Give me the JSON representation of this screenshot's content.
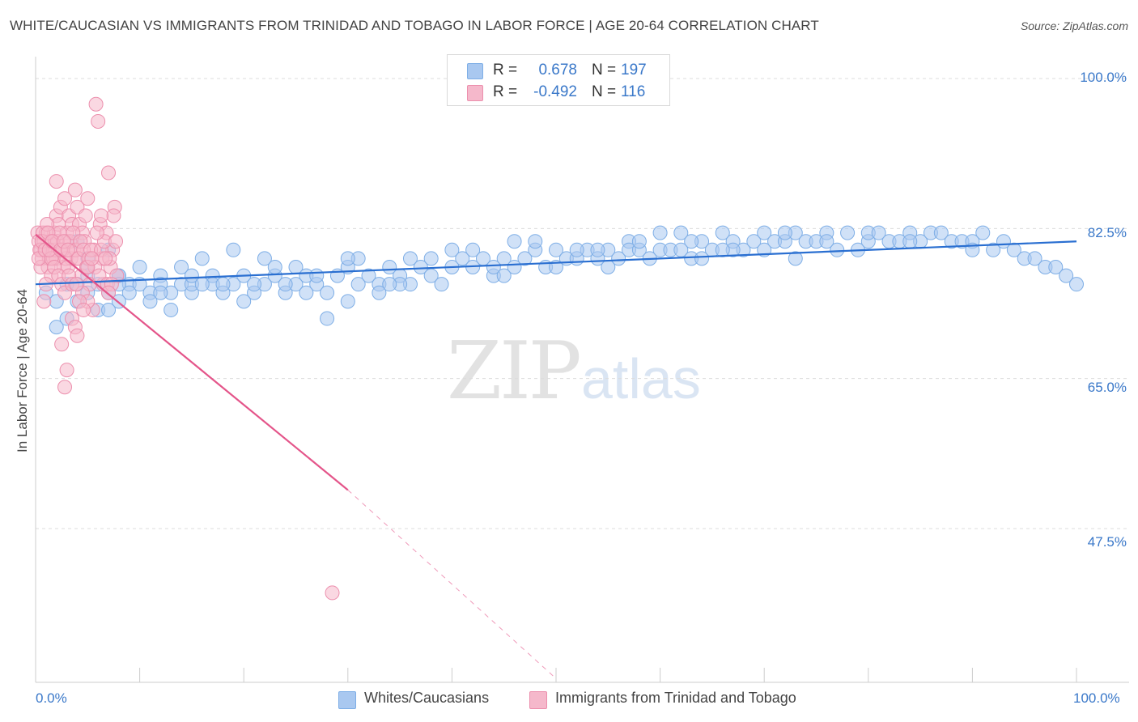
{
  "title": "WHITE/CAUCASIAN VS IMMIGRANTS FROM TRINIDAD AND TOBAGO IN LABOR FORCE | AGE 20-64 CORRELATION CHART",
  "source": "Source: ZipAtlas.com",
  "watermark": {
    "zip": "ZIP",
    "atlas": "atlas"
  },
  "stats": [
    {
      "r_label": "R =",
      "r_value": "0.678",
      "n_label": "N =",
      "n_value": "197",
      "color": "#a9c8f0"
    },
    {
      "r_label": "R =",
      "r_value": "-0.492",
      "n_label": "N =",
      "n_value": "116",
      "color": "#f5b8cb"
    }
  ],
  "legend": [
    {
      "label": "Whites/Caucasians",
      "color": "#a9c8f0"
    },
    {
      "label": "Immigrants from Trinidad and Tobago",
      "color": "#f5b8cb"
    }
  ],
  "chart_data": {
    "type": "scatter",
    "title": "WHITE/CAUCASIAN VS IMMIGRANTS FROM TRINIDAD AND TOBAGO IN LABOR FORCE | AGE 20-64 CORRELATION CHART",
    "xlabel": "",
    "ylabel": "In Labor Force | Age 20-64",
    "xlim": [
      0,
      100
    ],
    "ylim": [
      30,
      100
    ],
    "x_tick_labels": [
      "0.0%",
      "100.0%"
    ],
    "y_ticks": [
      47.5,
      65.0,
      82.5,
      100.0
    ],
    "y_tick_labels": [
      "47.5%",
      "65.0%",
      "82.5%",
      "100.0%"
    ],
    "grid": true,
    "series": [
      {
        "name": "Whites/Caucasians",
        "color": "#a9c8f0",
        "stroke": "#7eaee6",
        "trend": {
          "x": [
            0,
            100
          ],
          "y": [
            76.0,
            81.0
          ],
          "color": "#2a6fd1"
        },
        "points": [
          [
            2,
            74
          ],
          [
            2,
            71
          ],
          [
            4,
            81
          ],
          [
            5,
            78
          ],
          [
            5,
            77
          ],
          [
            5,
            79
          ],
          [
            4,
            76
          ],
          [
            6,
            76
          ],
          [
            7,
            75
          ],
          [
            7,
            80
          ],
          [
            8,
            77
          ],
          [
            8,
            74
          ],
          [
            9,
            76
          ],
          [
            10,
            76
          ],
          [
            11,
            75
          ],
          [
            12,
            77
          ],
          [
            12,
            76
          ],
          [
            13,
            73
          ],
          [
            14,
            78
          ],
          [
            14,
            76
          ],
          [
            15,
            75
          ],
          [
            15,
            76
          ],
          [
            16,
            79
          ],
          [
            17,
            77
          ],
          [
            17,
            76
          ],
          [
            18,
            75
          ],
          [
            19,
            76
          ],
          [
            20,
            77
          ],
          [
            21,
            75
          ],
          [
            22,
            76
          ],
          [
            22,
            79
          ],
          [
            23,
            77
          ],
          [
            24,
            75
          ],
          [
            25,
            78
          ],
          [
            25,
            76
          ],
          [
            26,
            77
          ],
          [
            27,
            76
          ],
          [
            28,
            75
          ],
          [
            28,
            72
          ],
          [
            29,
            77
          ],
          [
            30,
            78
          ],
          [
            31,
            76
          ],
          [
            31,
            79
          ],
          [
            32,
            77
          ],
          [
            33,
            76
          ],
          [
            33,
            75
          ],
          [
            34,
            78
          ],
          [
            35,
            77
          ],
          [
            36,
            79
          ],
          [
            36,
            76
          ],
          [
            37,
            78
          ],
          [
            38,
            77
          ],
          [
            39,
            76
          ],
          [
            40,
            78
          ],
          [
            41,
            79
          ],
          [
            42,
            80
          ],
          [
            42,
            78
          ],
          [
            43,
            79
          ],
          [
            44,
            77
          ],
          [
            45,
            79
          ],
          [
            46,
            81
          ],
          [
            46,
            78
          ],
          [
            47,
            79
          ],
          [
            48,
            80
          ],
          [
            49,
            78
          ],
          [
            50,
            80
          ],
          [
            50,
            78
          ],
          [
            51,
            79
          ],
          [
            52,
            79
          ],
          [
            53,
            80
          ],
          [
            54,
            79
          ],
          [
            55,
            78
          ],
          [
            56,
            79
          ],
          [
            57,
            81
          ],
          [
            57,
            80
          ],
          [
            58,
            80
          ],
          [
            59,
            79
          ],
          [
            60,
            80
          ],
          [
            60,
            82
          ],
          [
            61,
            80
          ],
          [
            62,
            80
          ],
          [
            63,
            79
          ],
          [
            64,
            81
          ],
          [
            64,
            79
          ],
          [
            65,
            80
          ],
          [
            66,
            82
          ],
          [
            67,
            81
          ],
          [
            68,
            80
          ],
          [
            69,
            81
          ],
          [
            70,
            82
          ],
          [
            70,
            80
          ],
          [
            71,
            81
          ],
          [
            72,
            81
          ],
          [
            73,
            82
          ],
          [
            73,
            79
          ],
          [
            74,
            81
          ],
          [
            75,
            81
          ],
          [
            76,
            82
          ],
          [
            77,
            80
          ],
          [
            78,
            82
          ],
          [
            79,
            80
          ],
          [
            80,
            81
          ],
          [
            80,
            82
          ],
          [
            81,
            82
          ],
          [
            82,
            81
          ],
          [
            83,
            81
          ],
          [
            84,
            82
          ],
          [
            85,
            81
          ],
          [
            86,
            82
          ],
          [
            87,
            82
          ],
          [
            88,
            81
          ],
          [
            89,
            81
          ],
          [
            90,
            81
          ],
          [
            91,
            82
          ],
          [
            92,
            80
          ],
          [
            93,
            81
          ],
          [
            94,
            80
          ],
          [
            95,
            79
          ],
          [
            96,
            79
          ],
          [
            97,
            78
          ],
          [
            98,
            78
          ],
          [
            99,
            77
          ],
          [
            100,
            76
          ],
          [
            62,
            82
          ],
          [
            55,
            80
          ],
          [
            48,
            81
          ],
          [
            40,
            80
          ],
          [
            35,
            76
          ],
          [
            30,
            74
          ],
          [
            27,
            77
          ],
          [
            24,
            76
          ],
          [
            20,
            74
          ],
          [
            19,
            80
          ],
          [
            18,
            76
          ],
          [
            11,
            74
          ],
          [
            13,
            75
          ],
          [
            10,
            78
          ],
          [
            9,
            75
          ],
          [
            8,
            77
          ],
          [
            6,
            73
          ],
          [
            3,
            76
          ],
          [
            30,
            79
          ],
          [
            45,
            77
          ],
          [
            52,
            80
          ],
          [
            67,
            80
          ],
          [
            72,
            82
          ],
          [
            58,
            81
          ],
          [
            76,
            81
          ],
          [
            84,
            81
          ],
          [
            90,
            80
          ],
          [
            66,
            80
          ],
          [
            63,
            81
          ],
          [
            54,
            80
          ],
          [
            44,
            78
          ],
          [
            38,
            79
          ],
          [
            34,
            76
          ],
          [
            26,
            75
          ],
          [
            23,
            78
          ],
          [
            21,
            76
          ],
          [
            15,
            77
          ],
          [
            16,
            76
          ],
          [
            12,
            75
          ],
          [
            8,
            76
          ],
          [
            5,
            75
          ],
          [
            4,
            74
          ],
          [
            7,
            73
          ],
          [
            3,
            72
          ],
          [
            1,
            75
          ]
        ]
      },
      {
        "name": "Immigrants from Trinidad and Tobago",
        "color": "#f5b8cb",
        "stroke": "#ec8fad",
        "trend": {
          "x": [
            0,
            30
          ],
          "y": [
            81.8,
            52.0
          ],
          "color": "#e4558a",
          "dash_to": [
            50,
            30.0
          ]
        },
        "points": [
          [
            0.2,
            82
          ],
          [
            0.3,
            81
          ],
          [
            0.5,
            80
          ],
          [
            0.6,
            79
          ],
          [
            0.8,
            81
          ],
          [
            1,
            82
          ],
          [
            1,
            80
          ],
          [
            1.2,
            78
          ],
          [
            1.3,
            79
          ],
          [
            1.5,
            81
          ],
          [
            1.6,
            80
          ],
          [
            1.8,
            82
          ],
          [
            2,
            79
          ],
          [
            2,
            84
          ],
          [
            2.2,
            83
          ],
          [
            2.4,
            85
          ],
          [
            2.5,
            80
          ],
          [
            2.7,
            78
          ],
          [
            2.8,
            86
          ],
          [
            3,
            82
          ],
          [
            3,
            81
          ],
          [
            3.2,
            84
          ],
          [
            3.4,
            79
          ],
          [
            3.5,
            83
          ],
          [
            3.7,
            80
          ],
          [
            3.8,
            87
          ],
          [
            4,
            85
          ],
          [
            4,
            79
          ],
          [
            4.2,
            83
          ],
          [
            4.4,
            77
          ],
          [
            4.5,
            82
          ],
          [
            4.7,
            81
          ],
          [
            4.8,
            84
          ],
          [
            5,
            86
          ],
          [
            5.2,
            76
          ],
          [
            5.5,
            73
          ],
          [
            5.6,
            80
          ],
          [
            5.8,
            97
          ],
          [
            6,
            95
          ],
          [
            6.2,
            83
          ],
          [
            6.4,
            79
          ],
          [
            6.5,
            76
          ],
          [
            6.8,
            82
          ],
          [
            7,
            89
          ],
          [
            7.2,
            78
          ],
          [
            7.4,
            80
          ],
          [
            7.6,
            85
          ],
          [
            7.8,
            77
          ],
          [
            2,
            88
          ],
          [
            2.5,
            69
          ],
          [
            2.8,
            64
          ],
          [
            3,
            66
          ],
          [
            3.5,
            72
          ],
          [
            3.8,
            71
          ],
          [
            4,
            70
          ],
          [
            4.5,
            75
          ],
          [
            5,
            74
          ],
          [
            1.5,
            77
          ],
          [
            1,
            76
          ],
          [
            0.8,
            74
          ],
          [
            0.5,
            78
          ],
          [
            0.4,
            80
          ],
          [
            0.7,
            82
          ],
          [
            1.1,
            83
          ],
          [
            1.4,
            81
          ],
          [
            1.7,
            79
          ],
          [
            1.9,
            80
          ],
          [
            2.1,
            81
          ],
          [
            2.3,
            82
          ],
          [
            2.6,
            80
          ],
          [
            2.9,
            79
          ],
          [
            3.1,
            78
          ],
          [
            3.3,
            81
          ],
          [
            3.6,
            82
          ],
          [
            3.9,
            80
          ],
          [
            4.1,
            79
          ],
          [
            4.3,
            81
          ],
          [
            4.6,
            80
          ],
          [
            4.9,
            78
          ],
          [
            5.1,
            79
          ],
          [
            5.3,
            80
          ],
          [
            5.7,
            78
          ],
          [
            6.1,
            77
          ],
          [
            6.3,
            80
          ],
          [
            6.6,
            81
          ],
          [
            6.9,
            76
          ],
          [
            7.1,
            79
          ],
          [
            7.3,
            76
          ],
          [
            7.5,
            84
          ],
          [
            7.7,
            81
          ],
          [
            0.3,
            79
          ],
          [
            0.6,
            81
          ],
          [
            0.9,
            80
          ],
          [
            1.2,
            82
          ],
          [
            1.5,
            79
          ],
          [
            1.8,
            78
          ],
          [
            2.2,
            77
          ],
          [
            2.5,
            76
          ],
          [
            2.8,
            75
          ],
          [
            3.2,
            77
          ],
          [
            3.5,
            76
          ],
          [
            3.9,
            76
          ],
          [
            4.2,
            74
          ],
          [
            4.6,
            73
          ],
          [
            5,
            78
          ],
          [
            5.4,
            79
          ],
          [
            5.9,
            82
          ],
          [
            6.3,
            84
          ],
          [
            6.7,
            79
          ],
          [
            7,
            75
          ],
          [
            28.5,
            40
          ],
          [
            1.3,
            80
          ],
          [
            1.6,
            81
          ],
          [
            2.4,
            80
          ],
          [
            2.7,
            81
          ],
          [
            3.1,
            80
          ]
        ]
      }
    ]
  }
}
